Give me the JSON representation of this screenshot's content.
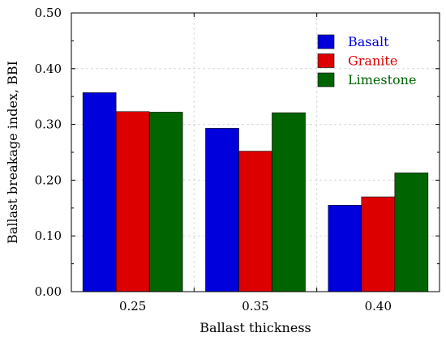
{
  "chart_data": {
    "type": "bar",
    "title": "",
    "xlabel": "Ballast thickness",
    "ylabel": "Ballast breakage index, BBI",
    "categories": [
      "0.25",
      "0.35",
      "0.40"
    ],
    "ylim": [
      0.0,
      0.5
    ],
    "yticks": [
      "0.00",
      "0.10",
      "0.20",
      "0.30",
      "0.40",
      "0.50"
    ],
    "grid": true,
    "legend_position": "top-right",
    "series": [
      {
        "name": "Basalt",
        "color": "#0000dd",
        "values": [
          0.357,
          0.293,
          0.155
        ]
      },
      {
        "name": "Granite",
        "color": "#dd0000",
        "values": [
          0.323,
          0.252,
          0.17
        ]
      },
      {
        "name": "Limestone",
        "color": "#006400",
        "values": [
          0.322,
          0.321,
          0.213
        ]
      }
    ]
  }
}
